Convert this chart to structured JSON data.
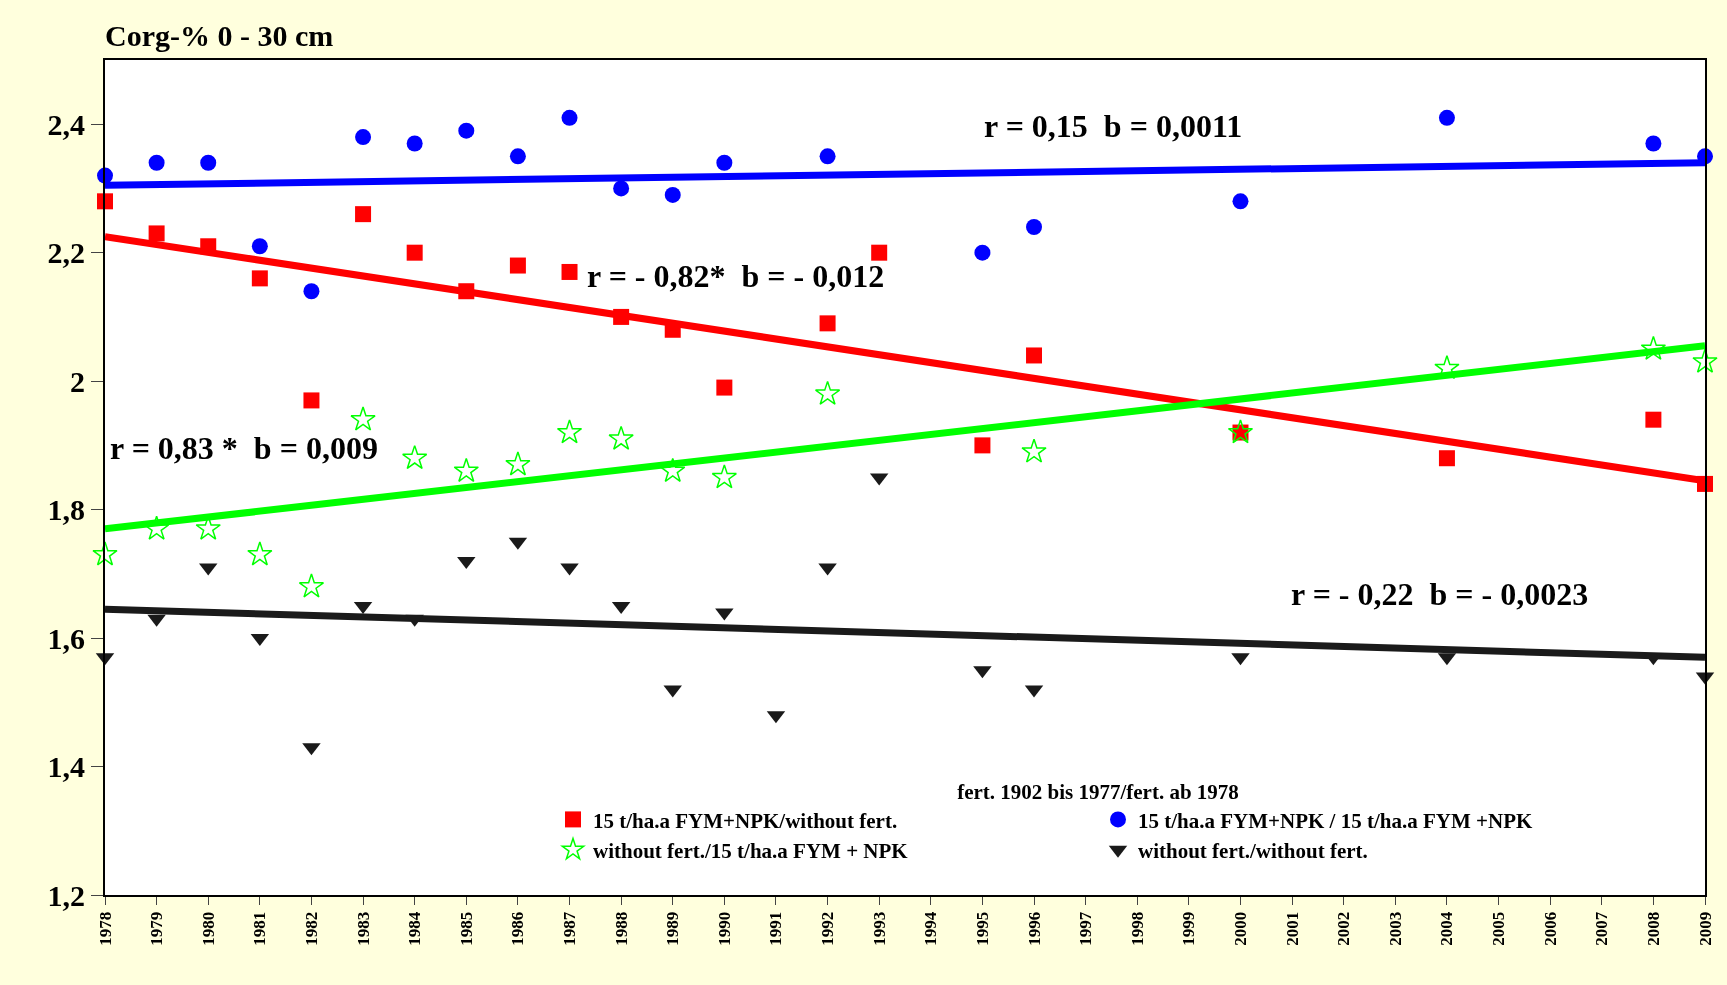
{
  "chart_data": {
    "type": "scatter",
    "title": "Corg-% 0 - 30 cm",
    "legend_title": "fert. 1902 bis 1977/fert. ab 1978",
    "legend": "bottom right",
    "grid": false,
    "xlim": [
      1978,
      2009
    ],
    "xticks": [
      1978,
      1979,
      1980,
      1981,
      1982,
      1983,
      1984,
      1985,
      1986,
      1987,
      1988,
      1989,
      1990,
      1991,
      1992,
      1993,
      1994,
      1995,
      1996,
      1997,
      1998,
      1999,
      2000,
      2001,
      2002,
      2003,
      2004,
      2005,
      2006,
      2007,
      2008,
      2009
    ],
    "ylim": [
      1.2,
      2.5
    ],
    "yticks": [
      {
        "value": 1.2,
        "label": "1,2"
      },
      {
        "value": 1.4,
        "label": "1,4"
      },
      {
        "value": 1.6,
        "label": "1,6"
      },
      {
        "value": 1.8,
        "label": "1,8"
      },
      2,
      {
        "value": 2.2,
        "label": "2,2"
      },
      {
        "value": 2.4,
        "label": "2,4"
      }
    ],
    "series": [
      {
        "name": "15 t/ha.a FYM+NPK/without fert.",
        "color": "#ff0000",
        "marker": "square",
        "x": [
          1978,
          1979,
          1980,
          1981,
          1982,
          1983,
          1984,
          1985,
          1986,
          1987,
          1988,
          1989,
          1990,
          1992,
          1993,
          1995,
          1996,
          2000,
          2004,
          2008,
          2009
        ],
        "values": [
          2.28,
          2.23,
          2.21,
          2.16,
          1.97,
          2.26,
          2.2,
          2.14,
          2.18,
          2.17,
          2.1,
          2.08,
          1.99,
          2.09,
          2.2,
          1.9,
          2.04,
          1.92,
          1.88,
          1.94,
          1.84
        ]
      },
      {
        "name": "15 t/ha.a FYM+NPK / 15 t/ha.a FYM +NPK",
        "color": "#0000ff",
        "marker": "circle",
        "x": [
          1978,
          1979,
          1980,
          1981,
          1982,
          1983,
          1984,
          1985,
          1986,
          1987,
          1988,
          1989,
          1990,
          1992,
          1995,
          1996,
          2000,
          2004,
          2008,
          2009
        ],
        "values": [
          2.32,
          2.34,
          2.34,
          2.21,
          2.14,
          2.38,
          2.37,
          2.39,
          2.35,
          2.41,
          2.3,
          2.29,
          2.34,
          2.35,
          2.2,
          2.24,
          2.28,
          2.41,
          2.37,
          2.35
        ]
      },
      {
        "name": "without fert./15 t/ha.a FYM + NPK",
        "color": "#00ff00",
        "marker": "star",
        "x": [
          1978,
          1979,
          1980,
          1981,
          1982,
          1983,
          1984,
          1985,
          1986,
          1987,
          1988,
          1989,
          1990,
          1992,
          1996,
          2000,
          2004,
          2008,
          2009
        ],
        "values": [
          1.73,
          1.77,
          1.77,
          1.73,
          1.68,
          1.94,
          1.88,
          1.86,
          1.87,
          1.92,
          1.91,
          1.86,
          1.85,
          1.98,
          1.89,
          1.92,
          2.02,
          2.05,
          2.03
        ]
      },
      {
        "name": "without fert./without fert.",
        "color": "#1a1a1a",
        "marker": "triangle",
        "x": [
          1978,
          1979,
          1980,
          1981,
          1982,
          1983,
          1984,
          1985,
          1986,
          1987,
          1988,
          1989,
          1990,
          1991,
          1992,
          1993,
          1995,
          1996,
          2000,
          2004,
          2008,
          2009
        ],
        "values": [
          1.57,
          1.63,
          1.71,
          1.6,
          1.43,
          1.65,
          1.63,
          1.72,
          1.75,
          1.71,
          1.65,
          1.52,
          1.64,
          1.48,
          1.71,
          1.85,
          1.55,
          1.52,
          1.57,
          1.57,
          1.57,
          1.54
        ]
      },
      {
        "type": "line",
        "color": "#0000ff",
        "x": [
          1978,
          2009
        ],
        "values": [
          2.305,
          2.34
        ]
      },
      {
        "type": "line",
        "color": "#ff0000",
        "x": [
          1978,
          2009
        ],
        "values": [
          2.225,
          1.845
        ]
      },
      {
        "type": "line",
        "color": "#00ff00",
        "x": [
          1978,
          2009
        ],
        "values": [
          1.77,
          2.055
        ]
      },
      {
        "type": "line",
        "color": "#1a1a1a",
        "x": [
          1978,
          2009
        ],
        "values": [
          1.645,
          1.57
        ]
      }
    ],
    "annotations": [
      "r = 0,15  b = 0,0011",
      "r = - 0,82*  b = - 0,012",
      "r = 0,83 *  b = 0,009",
      "r = - 0,22  b = - 0,0023"
    ]
  }
}
